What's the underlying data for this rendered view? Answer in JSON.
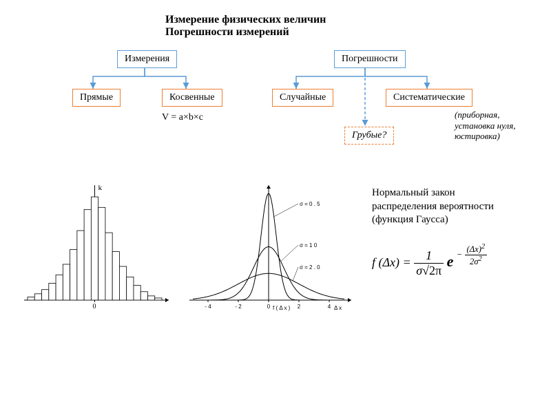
{
  "title": {
    "line1": "Измерение физических величин",
    "line2": "Погрешности измерений"
  },
  "tree_left": {
    "root": "Измерения",
    "leaves": [
      "Прямые",
      "Косвенные"
    ],
    "formula": "V = a×b×c"
  },
  "tree_right": {
    "root": "Погрешности",
    "leaves": [
      "Случайные",
      "Систематические"
    ],
    "extra": "Грубые?",
    "note_lines": [
      "(приборная,",
      "установка нуля,",
      "юстировка)"
    ]
  },
  "boxes": {
    "colors": {
      "blue": "#5b9bd5",
      "orange": "#ed7d31"
    },
    "root_border": "blue",
    "leaf_border": "orange",
    "extra_border": "orange_dashed"
  },
  "connectors": {
    "color": "#5b9bd5",
    "dash": "4,3",
    "arrow_size": 5
  },
  "histogram": {
    "y_label": "k",
    "x_label_zero": "0",
    "bars": [
      3,
      6,
      10,
      16,
      24,
      34,
      48,
      66,
      86,
      98,
      88,
      64,
      46,
      32,
      22,
      14,
      8,
      4,
      2
    ],
    "bar_fill": "#ffffff",
    "bar_stroke": "#000000",
    "axes_color": "#000000"
  },
  "gauss_chart": {
    "y_label": "f ( Δ  x )",
    "x_label": "Δ  x",
    "x_ticks": [
      "- 4",
      "- 2",
      "0",
      "2",
      "4"
    ],
    "xlim": [
      -5,
      5
    ],
    "curves": [
      {
        "sigma": 0.5,
        "label": "σ =   0 . 5",
        "peak": 0.798
      },
      {
        "sigma": 1.0,
        "label": "σ =   1   0",
        "peak": 0.399
      },
      {
        "sigma": 2.0,
        "label": "σ =   2 . 0",
        "peak": 0.199
      }
    ],
    "line_color": "#000000",
    "axes_color": "#000000",
    "label_fontsize": 8
  },
  "description": {
    "line1": "Нормальный закон",
    "line2": "распределения вероятности",
    "line3": "(функция Гаусса)"
  },
  "formula": {
    "lhs": "f (Δx) =",
    "frac1_num": "1",
    "frac1_den": "σ√2π",
    "e": "e",
    "exp_num": "(Δx)²",
    "exp_den": "2σ²",
    "exp_sign": "−"
  }
}
